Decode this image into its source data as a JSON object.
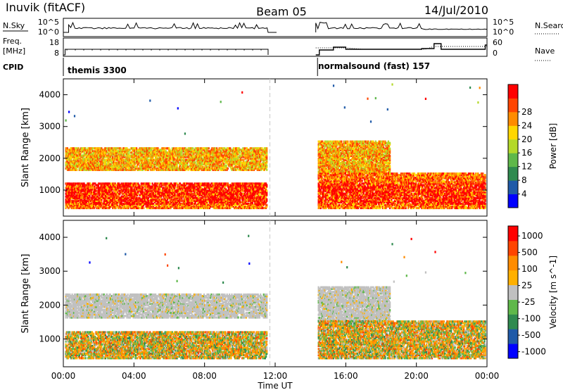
{
  "header": {
    "station": "Inuvik (fitACF)",
    "beam": "Beam 05",
    "date": "14/Jul/2010"
  },
  "side_labels": {
    "nsky": "N.Sky",
    "nsearch": "N.Search",
    "freq_line1": "Freq.",
    "freq_line2": "[MHz]",
    "nave": "Nave",
    "cpid": "CPID",
    "nsky_tick_top": "10^5",
    "nsky_tick_bot": "10^0",
    "nsearch_tick_top": "10^5",
    "nsearch_tick_bot": "10^0",
    "freq_tick_top": "18",
    "freq_tick_bot": "8",
    "nave_tick_top": "60",
    "nave_tick_bot": "0"
  },
  "cpid_labels": {
    "first": "themis 3300",
    "second": "normalsound (fast) 157"
  },
  "colors": {
    "power_scale": [
      "#0000ff",
      "#1f5aa8",
      "#2f8a4f",
      "#5fb84a",
      "#b4d92a",
      "#ffd700",
      "#ff8c00",
      "#ff4500",
      "#ff0000"
    ],
    "velocity_scale": [
      "#ff0000",
      "#ff4500",
      "#ff8c00",
      "#ffb000",
      "#c0c0c0",
      "#5fb84a",
      "#2f8a4f",
      "#1f5aa8",
      "#0000ff"
    ],
    "ground_scatter": "#bebebe"
  },
  "chart_data": [
    {
      "type": "heatmap",
      "name": "power-panel",
      "ylabel": "Slant Range [km]",
      "x_ticks": [
        "00:00",
        "04:00",
        "08:00",
        "12:00",
        "16:00",
        "20:00",
        "00:00"
      ],
      "y_ticks": [
        1000,
        2000,
        3000,
        4000
      ],
      "xlim_hours": [
        0,
        24
      ],
      "ylim_km": [
        180,
        4500
      ],
      "colorbar": {
        "label": "Power [dB]",
        "ticks": [
          "4",
          "8",
          "12",
          "16",
          "20",
          "24",
          "28"
        ]
      },
      "data_gap_hours": [
        11.6,
        14.3
      ],
      "scatter_bands": [
        {
          "start_h": 0.1,
          "end_h": 11.5,
          "range_km": [
            1600,
            2300
          ],
          "level": "mid-high"
        },
        {
          "start_h": 0.1,
          "end_h": 11.5,
          "range_km": [
            400,
            1200
          ],
          "level": "high"
        },
        {
          "start_h": 14.4,
          "end_h": 23.9,
          "range_km": [
            400,
            1500
          ],
          "level": "high"
        },
        {
          "start_h": 14.4,
          "end_h": 18.5,
          "range_km": [
            1500,
            2500
          ],
          "level": "mid"
        }
      ]
    },
    {
      "type": "heatmap",
      "name": "velocity-panel",
      "ylabel": "Slant Range [km]",
      "xlabel": "Time UT",
      "x_ticks": [
        "00:00",
        "04:00",
        "08:00",
        "12:00",
        "16:00",
        "20:00",
        "00:00"
      ],
      "y_ticks": [
        1000,
        2000,
        3000,
        4000
      ],
      "xlim_hours": [
        0,
        24
      ],
      "ylim_km": [
        180,
        4500
      ],
      "colorbar": {
        "label": "Velocity [m s^-1]",
        "ticks": [
          "1000",
          "500",
          "100",
          "25",
          "-25",
          "-100",
          "-500",
          "-1000"
        ]
      },
      "data_gap_hours": [
        11.6,
        14.3
      ]
    }
  ]
}
